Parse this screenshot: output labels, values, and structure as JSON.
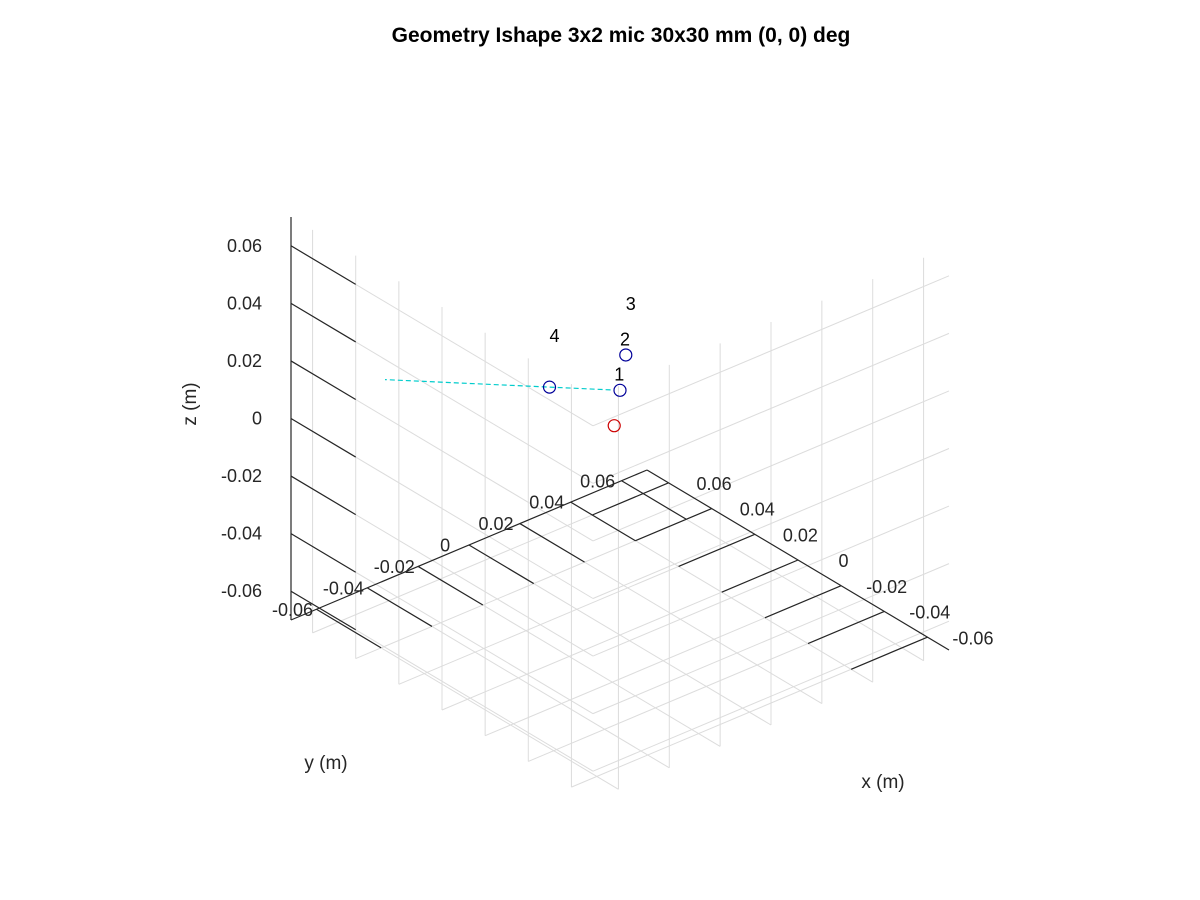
{
  "chart_data": {
    "type": "scatter",
    "projection": "3d",
    "title": "Geometry Ishape 3x2 mic 30x30 mm (0, 0) deg",
    "xlabel": "x (m)",
    "ylabel": "y (m)",
    "zlabel": "z (m)",
    "xlim": [
      -0.07,
      0.07
    ],
    "ylim": [
      -0.07,
      0.07
    ],
    "zlim": [
      -0.07,
      0.07
    ],
    "ticks": [
      -0.06,
      -0.04,
      -0.02,
      0,
      0.02,
      0.04,
      0.06
    ],
    "tick_labels": [
      "-0.06",
      "-0.04",
      "-0.02",
      "0",
      "0.02",
      "0.04",
      "0.06"
    ],
    "grid": true,
    "microphones": [
      {
        "label": "1",
        "x": -0.015,
        "y": -0.015,
        "z": 0.015,
        "color": "#cc0000"
      },
      {
        "label": "2",
        "x": 0.0,
        "y": 0.0,
        "z": 0.015,
        "color": "#000099"
      },
      {
        "label": "3",
        "x": 0.015,
        "y": 0.015,
        "z": 0.015,
        "color": "#000099"
      },
      {
        "label": "4",
        "x": -0.015,
        "y": 0.015,
        "z": 0.015,
        "color": "#000099"
      }
    ],
    "direction_line": {
      "from": {
        "x": -0.002,
        "y": 0.002,
        "z": 0.015
      },
      "to": {
        "x": -0.05,
        "y": 0.05,
        "z": 0.015
      },
      "color": "#00cccc",
      "style": "dashed"
    }
  }
}
